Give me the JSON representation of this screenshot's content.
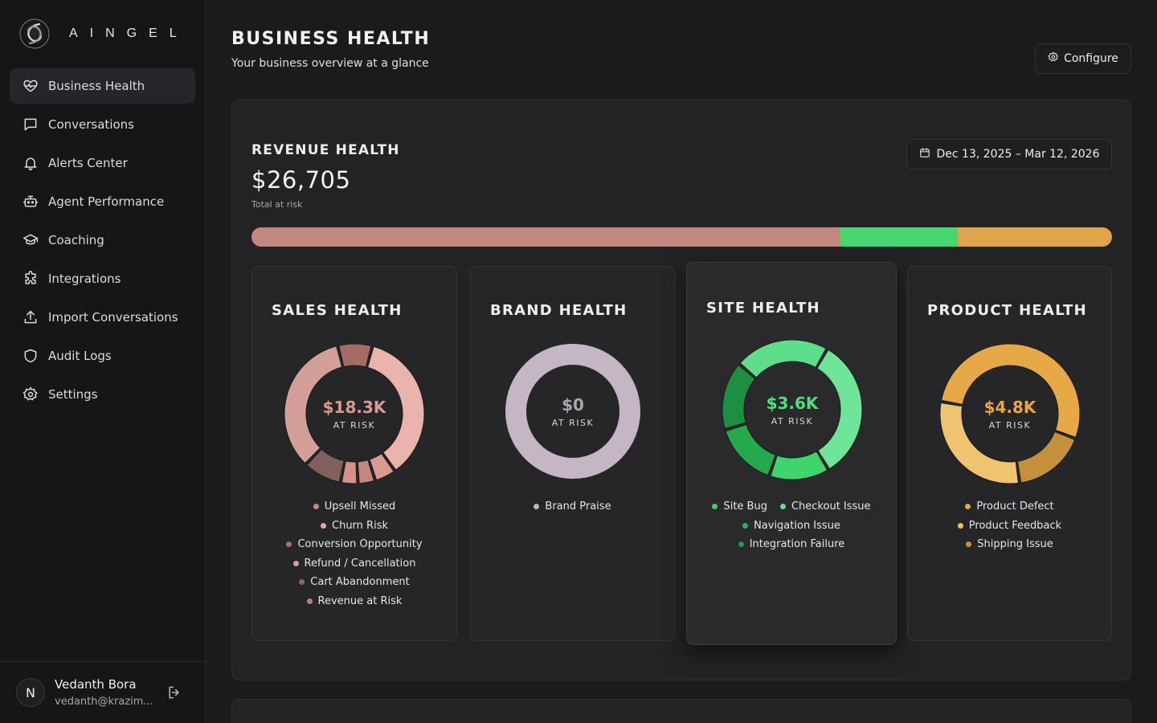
{
  "brand": {
    "name": "AINGEL",
    "logo_icon": "swirl-logo-icon"
  },
  "sidebar": {
    "items": [
      {
        "label": "Business Health",
        "icon": "heart-pulse-icon",
        "active": true
      },
      {
        "label": "Conversations",
        "icon": "chat-bubble-icon"
      },
      {
        "label": "Alerts Center",
        "icon": "bell-icon"
      },
      {
        "label": "Agent Performance",
        "icon": "robot-icon"
      },
      {
        "label": "Coaching",
        "icon": "graduation-cap-icon"
      },
      {
        "label": "Integrations",
        "icon": "puzzle-icon"
      },
      {
        "label": "Import Conversations",
        "icon": "upload-icon"
      },
      {
        "label": "Audit Logs",
        "icon": "shield-icon"
      },
      {
        "label": "Settings",
        "icon": "gear-icon"
      }
    ]
  },
  "user": {
    "initial": "N",
    "name": "Vedanth Bora",
    "email": "vedanth@krazim..."
  },
  "header": {
    "title": "BUSINESS HEALTH",
    "subtitle": "Your business overview at a glance",
    "configure_label": "Configure"
  },
  "revenue": {
    "title": "REVENUE HEALTH",
    "amount": "$26,705",
    "caption": "Total at risk",
    "date_range": "Dec 13, 2025 – Mar 12, 2026",
    "bar_segments": [
      {
        "name": "Sales",
        "fraction": 0.684,
        "color": "#c4877f"
      },
      {
        "name": "Site",
        "fraction": 0.137,
        "color": "#46d672"
      },
      {
        "name": "Product",
        "fraction": 0.179,
        "color": "#e0a54a"
      }
    ]
  },
  "cards": {
    "sales": {
      "title": "SALES HEALTH",
      "value": "$18.3K",
      "value_color": "#d99a90",
      "at_risk_label": "AT RISK",
      "legend": [
        {
          "label": "Upsell Missed",
          "color": "#c8877e"
        },
        {
          "label": "Churn Risk",
          "color": "#e6a9a1"
        },
        {
          "label": "Conversion Opportunity",
          "color": "#a86f69"
        },
        {
          "label": "Refund / Cancellation",
          "color": "#dd9c92"
        },
        {
          "label": "Cart Abandonment",
          "color": "#8a6661"
        },
        {
          "label": "Revenue at Risk",
          "color": "#bd7f77"
        }
      ],
      "segments": [
        {
          "fraction": 0.36,
          "color": "#eab4ad"
        },
        {
          "fraction": 0.05,
          "color": "#d99a91"
        },
        {
          "fraction": 0.04,
          "color": "#c4877f"
        },
        {
          "fraction": 0.04,
          "color": "#d6928a"
        },
        {
          "fraction": 0.09,
          "color": "#80605c"
        },
        {
          "fraction": 0.34,
          "color": "#d39f98"
        },
        {
          "fraction": 0.08,
          "color": "#a56c66"
        }
      ],
      "start_angle": 15
    },
    "brand": {
      "title": "BRAND HEALTH",
      "value": "$0",
      "value_color": "#a8a8ad",
      "at_risk_label": "AT RISK",
      "legend": [
        {
          "label": "Brand Praise",
          "color": "#bcb8bd"
        }
      ],
      "segments": [
        {
          "fraction": 1.0,
          "color": "#c5b6c5"
        }
      ],
      "start_angle": 0
    },
    "site": {
      "title": "SITE HEALTH",
      "value": "$3.6K",
      "value_color": "#4fe07c",
      "at_risk_label": "AT RISK",
      "legend": [
        {
          "label": "Site Bug",
          "color": "#3fcf6b"
        },
        {
          "label": "Checkout Issue",
          "color": "#62e28c"
        },
        {
          "label": "Navigation Issue",
          "color": "#2ab45a"
        },
        {
          "label": "Integration Failure",
          "color": "#1f9a47"
        }
      ],
      "segments": [
        {
          "fraction": 0.33,
          "color": "#6fe59a"
        },
        {
          "fraction": 0.14,
          "color": "#3fd46e"
        },
        {
          "fraction": 0.15,
          "color": "#24a94f"
        },
        {
          "fraction": 0.16,
          "color": "#1c8f42"
        },
        {
          "fraction": 0.22,
          "color": "#5ede8b"
        }
      ],
      "start_angle": 30
    },
    "product": {
      "title": "PRODUCT HEALTH",
      "value": "$4.8K",
      "value_color": "#e6a843",
      "at_risk_label": "AT RISK",
      "legend": [
        {
          "label": "Product Defect",
          "color": "#e7a945"
        },
        {
          "label": "Product Feedback",
          "color": "#eec063"
        },
        {
          "label": "Shipping Issue",
          "color": "#c99235"
        }
      ],
      "segments": [
        {
          "fraction": 0.53,
          "color": "#e7a945"
        },
        {
          "fraction": 0.17,
          "color": "#c4903a"
        },
        {
          "fraction": 0.3,
          "color": "#eec471"
        }
      ],
      "start_angle": 280
    }
  }
}
